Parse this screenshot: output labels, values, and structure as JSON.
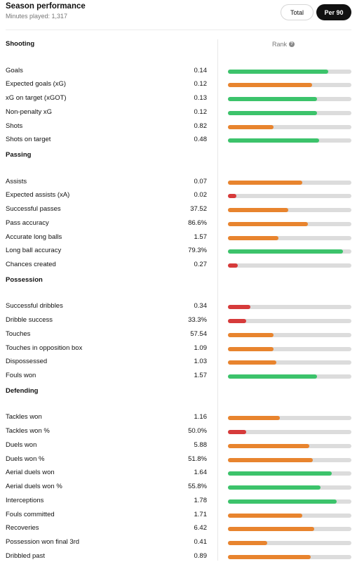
{
  "header": {
    "title": "Season performance",
    "subtitle": "Minutes played: 1,317",
    "toggle_total": "Total",
    "toggle_per90": "Per 90",
    "rank_label": "Rank",
    "help_icon_glyph": "?"
  },
  "colors": {
    "green": "#3cc36b",
    "orange": "#e8842e",
    "red": "#d63a3a"
  },
  "sections": [
    {
      "title": "Shooting",
      "stats": [
        {
          "label": "Goals",
          "value": "0.14",
          "rank": 0.81,
          "color": "green"
        },
        {
          "label": "Expected goals (xG)",
          "value": "0.12",
          "rank": 0.68,
          "color": "orange"
        },
        {
          "label": "xG on target (xGOT)",
          "value": "0.13",
          "rank": 0.72,
          "color": "green"
        },
        {
          "label": "Non-penalty xG",
          "value": "0.12",
          "rank": 0.72,
          "color": "green"
        },
        {
          "label": "Shots",
          "value": "0.82",
          "rank": 0.37,
          "color": "orange"
        },
        {
          "label": "Shots on target",
          "value": "0.48",
          "rank": 0.74,
          "color": "green"
        }
      ]
    },
    {
      "title": "Passing",
      "stats": [
        {
          "label": "Assists",
          "value": "0.07",
          "rank": 0.6,
          "color": "orange"
        },
        {
          "label": "Expected assists (xA)",
          "value": "0.02",
          "rank": 0.07,
          "color": "red"
        },
        {
          "label": "Successful passes",
          "value": "37.52",
          "rank": 0.49,
          "color": "orange"
        },
        {
          "label": "Pass accuracy",
          "value": "86.6%",
          "rank": 0.65,
          "color": "orange"
        },
        {
          "label": "Accurate long balls",
          "value": "1.57",
          "rank": 0.41,
          "color": "orange"
        },
        {
          "label": "Long ball accuracy",
          "value": "79.3%",
          "rank": 0.93,
          "color": "green"
        },
        {
          "label": "Chances created",
          "value": "0.27",
          "rank": 0.08,
          "color": "red"
        }
      ]
    },
    {
      "title": "Possession",
      "stats": [
        {
          "label": "Successful dribbles",
          "value": "0.34",
          "rank": 0.18,
          "color": "red"
        },
        {
          "label": "Dribble success",
          "value": "33.3%",
          "rank": 0.15,
          "color": "red"
        },
        {
          "label": "Touches",
          "value": "57.54",
          "rank": 0.37,
          "color": "orange"
        },
        {
          "label": "Touches in opposition box",
          "value": "1.09",
          "rank": 0.37,
          "color": "orange"
        },
        {
          "label": "Dispossessed",
          "value": "1.03",
          "rank": 0.39,
          "color": "orange"
        },
        {
          "label": "Fouls won",
          "value": "1.57",
          "rank": 0.72,
          "color": "green"
        }
      ]
    },
    {
      "title": "Defending",
      "stats": [
        {
          "label": "Tackles won",
          "value": "1.16",
          "rank": 0.42,
          "color": "orange"
        },
        {
          "label": "Tackles won %",
          "value": "50.0%",
          "rank": 0.15,
          "color": "red"
        },
        {
          "label": "Duels won",
          "value": "5.88",
          "rank": 0.66,
          "color": "orange"
        },
        {
          "label": "Duels won %",
          "value": "51.8%",
          "rank": 0.69,
          "color": "orange"
        },
        {
          "label": "Aerial duels won",
          "value": "1.64",
          "rank": 0.84,
          "color": "green"
        },
        {
          "label": "Aerial duels won %",
          "value": "55.8%",
          "rank": 0.75,
          "color": "green"
        },
        {
          "label": "Interceptions",
          "value": "1.78",
          "rank": 0.88,
          "color": "green"
        },
        {
          "label": "Fouls committed",
          "value": "1.71",
          "rank": 0.6,
          "color": "orange"
        },
        {
          "label": "Recoveries",
          "value": "6.42",
          "rank": 0.7,
          "color": "orange"
        },
        {
          "label": "Possession won final 3rd",
          "value": "0.41",
          "rank": 0.32,
          "color": "orange"
        },
        {
          "label": "Dribbled past",
          "value": "0.89",
          "rank": 0.67,
          "color": "orange"
        }
      ]
    }
  ]
}
